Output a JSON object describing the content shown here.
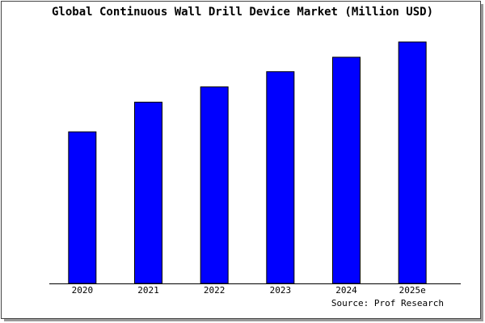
{
  "chart_data": {
    "type": "bar",
    "title": "Global Continuous Wall Drill Device Market (Million USD)",
    "categories": [
      "2020",
      "2021",
      "2022",
      "2023",
      "2024",
      "2025e"
    ],
    "values": [
      189,
      226,
      245,
      264,
      282,
      301
    ],
    "color": "#0000ff",
    "ylim": [
      0,
      303
    ],
    "source": "Source: Prof Research"
  }
}
